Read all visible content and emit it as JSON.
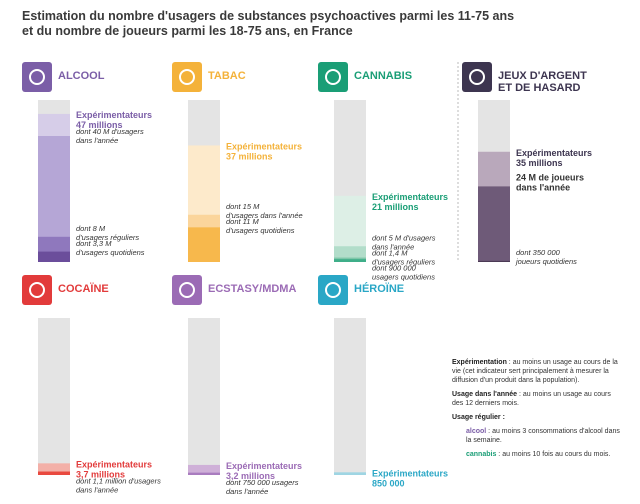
{
  "title": [
    "Estimation du nombre d'usagers de substances psychoactives parmi les 11-75 ans",
    "et du nombre de joueurs parmi les 18-75 ans, en France"
  ],
  "panels": [
    {
      "name": [
        "ALCOOL"
      ],
      "color": "#7b5ea7",
      "levels": [
        {
          "value": 47,
          "color": "#d6cde8",
          "label": [
            "Expérimentateurs",
            "47 millions"
          ]
        },
        {
          "value": 40,
          "color": "#b5a6d6",
          "label": [
            "dont 40 M d'usagers",
            "dans l'année"
          ]
        },
        {
          "value": 8,
          "color": "#8f78bd",
          "label": [
            "dont 8 M",
            "d'usagers réguliers"
          ]
        },
        {
          "value": 3.3,
          "color": "#6b4e9b",
          "label": [
            "dont 3,3 M",
            "d'usagers quotidiens"
          ]
        }
      ]
    },
    {
      "name": [
        "TABAC"
      ],
      "color": "#f4b23a",
      "levels": [
        {
          "value": 37,
          "color": "#fdeacb",
          "label": [
            "Expérimentateurs",
            "37 millions"
          ]
        },
        {
          "value": 15,
          "color": "#fbd59b",
          "label": [
            "dont 15 M",
            "d'usagers dans l'année"
          ]
        },
        {
          "value": 11,
          "color": "#f7b84c",
          "label": [
            "dont 11 M",
            "d'usagers quotidiens"
          ]
        }
      ]
    },
    {
      "name": [
        "CANNABIS"
      ],
      "color": "#1a9e76",
      "levels": [
        {
          "value": 21,
          "color": "#ddefe6",
          "label": [
            "Expérimentateurs",
            "21 millions"
          ]
        },
        {
          "value": 5,
          "color": "#b2ddca",
          "label": [
            "dont 5 M d'usagers",
            "dans l'année"
          ]
        },
        {
          "value": 1.4,
          "color": "#7fc6a9",
          "label": [
            "dont 1,4 M",
            "d'usagers réguliers"
          ]
        },
        {
          "value": 0.9,
          "color": "#3fae89",
          "label": [
            "dont 900 000",
            "usagers quotidiens"
          ]
        }
      ]
    },
    {
      "name": [
        "JEUX D'ARGENT",
        "ET DE HASARD"
      ],
      "color": "#3d3550",
      "levels": [
        {
          "value": 35,
          "color": "#b9a8bb",
          "label": [
            "Expérimentateurs",
            "35 millions"
          ]
        },
        {
          "value": 24,
          "color": "#6e5a78",
          "bold": true,
          "label": [
            "24 M de joueurs",
            "dans l'année"
          ]
        },
        {
          "value": 0.35,
          "color": "#4b3a55",
          "label": [
            "dont 350 000",
            "joueurs quotidiens"
          ]
        }
      ]
    },
    {
      "name": [
        "COCAÏNE"
      ],
      "color": "#e23b3b",
      "levels": [
        {
          "value": 3.7,
          "color": "#f3b0a8",
          "label": [
            "Expérimentateurs",
            "3,7 millions"
          ]
        },
        {
          "value": 1.1,
          "color": "#e9493f",
          "label": [
            "dont 1,1 million d'usagers",
            "dans l'année"
          ]
        }
      ]
    },
    {
      "name": [
        "ECSTASY/MDMA"
      ],
      "color": "#9b6bb5",
      "levels": [
        {
          "value": 3.2,
          "color": "#cfb0d8",
          "label": [
            "Expérimentateurs",
            "3,2 millions"
          ]
        },
        {
          "value": 0.75,
          "color": "#a97cbf",
          "label": [
            "dont 750 000 usagers",
            "dans l'année"
          ]
        }
      ]
    },
    {
      "name": [
        "HÉROÏNE"
      ],
      "color": "#2aa7c6",
      "levels": [
        {
          "value": 0.85,
          "color": "#9fd5e3",
          "label": [
            "Expérimentateurs",
            "850 000"
          ]
        }
      ]
    }
  ],
  "legend": {
    "items": [
      {
        "term": "Expérimentation",
        "text": " : au moins un usage au cours de la vie (cet indicateur sert principalement à mesurer la diffusion d'un produit dans la population)."
      },
      {
        "term": "Usage dans l'année",
        "text": " : au moins un usage au cours des 12 derniers mois."
      },
      {
        "term": "Usage régulier :",
        "text": ""
      }
    ],
    "sub": [
      {
        "term": "alcool",
        "color": "#7b5ea7",
        "text": " : au moins 3 consommations d'alcool dans la semaine."
      },
      {
        "term": "cannabis",
        "color": "#1a9e76",
        "text": " : au moins 10 fois au cours du mois."
      }
    ]
  }
}
